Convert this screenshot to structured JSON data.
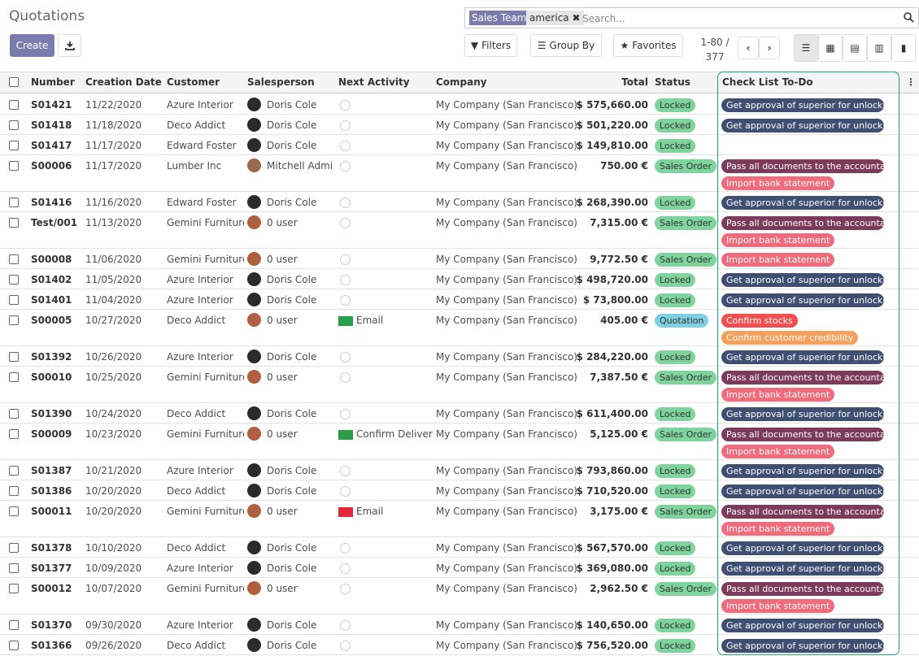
{
  "header": {
    "title": "Quotations",
    "create": "Create",
    "facet_name": "Sales Team",
    "facet_value": "america",
    "search_placeholder": "Search...",
    "filters": "Filters",
    "group_by": "Group By",
    "favorites": "Favorites",
    "pager_range": "1-80 /",
    "pager_total": "377"
  },
  "table": {
    "columns": [
      "Number",
      "Creation Date",
      "Customer",
      "Salesperson",
      "Next Activity",
      "Company",
      "Total",
      "Status",
      "Check List To-Do"
    ],
    "rows": [
      {
        "number": "S01421",
        "date": "11/22/2020",
        "customer": "Azure Interior",
        "salesperson": "Doris Cole",
        "avatar": "#2b2b2b",
        "activity": null,
        "company": "My Company (San Francisco)",
        "total": "$ 575,660.00",
        "status": {
          "label": "Locked",
          "color": "#7fd39d"
        },
        "checklist": [
          {
            "label": "Get approval of superior for unlocki...",
            "color": "#3f4f72"
          }
        ]
      },
      {
        "number": "S01418",
        "date": "11/18/2020",
        "customer": "Deco Addict",
        "salesperson": "Doris Cole",
        "avatar": "#2b2b2b",
        "activity": null,
        "company": "My Company (San Francisco)",
        "total": "$ 501,220.00",
        "status": {
          "label": "Locked",
          "color": "#7fd39d"
        },
        "checklist": [
          {
            "label": "Get approval of superior for unlocki...",
            "color": "#3f4f72"
          }
        ]
      },
      {
        "number": "S01417",
        "date": "11/17/2020",
        "customer": "Edward Foster",
        "salesperson": "Doris Cole",
        "avatar": "#2b2b2b",
        "activity": null,
        "company": "My Company (San Francisco)",
        "total": "$ 149,810.00",
        "status": {
          "label": "Locked",
          "color": "#7fd39d"
        },
        "checklist": []
      },
      {
        "number": "S00006",
        "date": "11/17/2020",
        "customer": "Lumber Inc",
        "salesperson": "Mitchell Admin",
        "avatar": "#9a6a4c",
        "activity": null,
        "company": "My Company (San Francisco)",
        "total": "750.00 €",
        "status": {
          "label": "Sales Order",
          "color": "#7fd39d"
        },
        "checklist": [
          {
            "label": "Pass all documents to the accountant",
            "color": "#7d3b5c"
          },
          {
            "label": "Import bank statement",
            "color": "#f06b7b"
          }
        ]
      },
      {
        "number": "S01416",
        "date": "11/16/2020",
        "customer": "Edward Foster",
        "salesperson": "Doris Cole",
        "avatar": "#2b2b2b",
        "activity": null,
        "company": "My Company (San Francisco)",
        "total": "$ 268,390.00",
        "status": {
          "label": "Locked",
          "color": "#7fd39d"
        },
        "checklist": [
          {
            "label": "Get approval of superior for unlocki...",
            "color": "#3f4f72"
          }
        ]
      },
      {
        "number": "Test/001",
        "date": "11/13/2020",
        "customer": "Gemini Furniture",
        "salesperson": "0 user",
        "avatar": "#b0603e",
        "activity": null,
        "company": "My Company (San Francisco)",
        "total": "7,315.00 €",
        "status": {
          "label": "Sales Order",
          "color": "#7fd39d"
        },
        "checklist": [
          {
            "label": "Pass all documents to the accountant",
            "color": "#7d3b5c"
          },
          {
            "label": "Import bank statement",
            "color": "#f06b7b"
          }
        ]
      },
      {
        "number": "S00008",
        "date": "11/06/2020",
        "customer": "Gemini Furniture",
        "salesperson": "0 user",
        "avatar": "#b0603e",
        "activity": null,
        "company": "My Company (San Francisco)",
        "total": "9,772.50 €",
        "status": {
          "label": "Sales Order",
          "color": "#7fd39d"
        },
        "checklist": [
          {
            "label": "Import bank statement",
            "color": "#f06b7b"
          }
        ]
      },
      {
        "number": "S01402",
        "date": "11/05/2020",
        "customer": "Azure Interior",
        "salesperson": "Doris Cole",
        "avatar": "#2b2b2b",
        "activity": null,
        "company": "My Company (San Francisco)",
        "total": "$ 498,720.00",
        "status": {
          "label": "Locked",
          "color": "#7fd39d"
        },
        "checklist": [
          {
            "label": "Get approval of superior for unlocki...",
            "color": "#3f4f72"
          }
        ]
      },
      {
        "number": "S01401",
        "date": "11/04/2020",
        "customer": "Azure Interior",
        "salesperson": "Doris Cole",
        "avatar": "#2b2b2b",
        "activity": null,
        "company": "My Company (San Francisco)",
        "total": "$ 73,800.00",
        "status": {
          "label": "Locked",
          "color": "#7fd39d"
        },
        "checklist": [
          {
            "label": "Get approval of superior for unlocki...",
            "color": "#3f4f72"
          }
        ]
      },
      {
        "number": "S00005",
        "date": "10/27/2020",
        "customer": "Deco Addict",
        "salesperson": "0 user",
        "avatar": "#b0603e",
        "activity": {
          "label": "Email",
          "color": "#2a9d4a"
        },
        "company": "My Company (San Francisco)",
        "total": "405.00 €",
        "status": {
          "label": "Quotation",
          "color": "#7fd0e2"
        },
        "checklist": [
          {
            "label": "Confirm stocks",
            "color": "#f25050"
          },
          {
            "label": "Confirm customer credibility",
            "color": "#f5a05c"
          }
        ]
      },
      {
        "number": "S01392",
        "date": "10/26/2020",
        "customer": "Azure Interior",
        "salesperson": "Doris Cole",
        "avatar": "#2b2b2b",
        "activity": null,
        "company": "My Company (San Francisco)",
        "total": "$ 284,220.00",
        "status": {
          "label": "Locked",
          "color": "#7fd39d"
        },
        "checklist": [
          {
            "label": "Get approval of superior for unlocki...",
            "color": "#3f4f72"
          }
        ]
      },
      {
        "number": "S00010",
        "date": "10/25/2020",
        "customer": "Gemini Furniture",
        "salesperson": "0 user",
        "avatar": "#b0603e",
        "activity": null,
        "company": "My Company (San Francisco)",
        "total": "7,387.50 €",
        "status": {
          "label": "Sales Order",
          "color": "#7fd39d"
        },
        "checklist": [
          {
            "label": "Pass all documents to the accountant",
            "color": "#7d3b5c"
          },
          {
            "label": "Import bank statement",
            "color": "#f06b7b"
          }
        ]
      },
      {
        "number": "S01390",
        "date": "10/24/2020",
        "customer": "Deco Addict",
        "salesperson": "Doris Cole",
        "avatar": "#2b2b2b",
        "activity": null,
        "company": "My Company (San Francisco)",
        "total": "$ 611,400.00",
        "status": {
          "label": "Locked",
          "color": "#7fd39d"
        },
        "checklist": [
          {
            "label": "Get approval of superior for unlocki...",
            "color": "#3f4f72"
          }
        ]
      },
      {
        "number": "S00009",
        "date": "10/23/2020",
        "customer": "Gemini Furniture",
        "salesperson": "0 user",
        "avatar": "#b0603e",
        "activity": {
          "label": "Confirm Delivery",
          "color": "#2a9d4a"
        },
        "company": "My Company (San Francisco)",
        "total": "5,125.00 €",
        "status": {
          "label": "Sales Order",
          "color": "#7fd39d"
        },
        "checklist": [
          {
            "label": "Pass all documents to the accountant",
            "color": "#7d3b5c"
          },
          {
            "label": "Import bank statement",
            "color": "#f06b7b"
          }
        ]
      },
      {
        "number": "S01387",
        "date": "10/21/2020",
        "customer": "Azure Interior",
        "salesperson": "Doris Cole",
        "avatar": "#2b2b2b",
        "activity": null,
        "company": "My Company (San Francisco)",
        "total": "$ 793,860.00",
        "status": {
          "label": "Locked",
          "color": "#7fd39d"
        },
        "checklist": [
          {
            "label": "Get approval of superior for unlocki...",
            "color": "#3f4f72"
          }
        ]
      },
      {
        "number": "S01386",
        "date": "10/20/2020",
        "customer": "Deco Addict",
        "salesperson": "Doris Cole",
        "avatar": "#2b2b2b",
        "activity": null,
        "company": "My Company (San Francisco)",
        "total": "$ 710,520.00",
        "status": {
          "label": "Locked",
          "color": "#7fd39d"
        },
        "checklist": [
          {
            "label": "Get approval of superior for unlocki...",
            "color": "#3f4f72"
          }
        ]
      },
      {
        "number": "S00011",
        "date": "10/20/2020",
        "customer": "Gemini Furniture",
        "salesperson": "0 user",
        "avatar": "#b0603e",
        "activity": {
          "label": "Email",
          "color": "#e0283f"
        },
        "company": "My Company (San Francisco)",
        "total": "3,175.00 €",
        "status": {
          "label": "Sales Order",
          "color": "#7fd39d"
        },
        "checklist": [
          {
            "label": "Pass all documents to the accountant",
            "color": "#7d3b5c"
          },
          {
            "label": "Import bank statement",
            "color": "#f06b7b"
          }
        ]
      },
      {
        "number": "S01378",
        "date": "10/10/2020",
        "customer": "Deco Addict",
        "salesperson": "Doris Cole",
        "avatar": "#2b2b2b",
        "activity": null,
        "company": "My Company (San Francisco)",
        "total": "$ 567,570.00",
        "status": {
          "label": "Locked",
          "color": "#7fd39d"
        },
        "checklist": [
          {
            "label": "Get approval of superior for unlocki...",
            "color": "#3f4f72"
          }
        ]
      },
      {
        "number": "S01377",
        "date": "10/09/2020",
        "customer": "Azure Interior",
        "salesperson": "Doris Cole",
        "avatar": "#2b2b2b",
        "activity": null,
        "company": "My Company (San Francisco)",
        "total": "$ 369,080.00",
        "status": {
          "label": "Locked",
          "color": "#7fd39d"
        },
        "checklist": [
          {
            "label": "Get approval of superior for unlocki...",
            "color": "#3f4f72"
          }
        ]
      },
      {
        "number": "S00012",
        "date": "10/07/2020",
        "customer": "Gemini Furniture",
        "salesperson": "0 user",
        "avatar": "#b0603e",
        "activity": null,
        "company": "My Company (San Francisco)",
        "total": "2,962.50 €",
        "status": {
          "label": "Sales Order",
          "color": "#7fd39d"
        },
        "checklist": [
          {
            "label": "Pass all documents to the accountant",
            "color": "#7d3b5c"
          },
          {
            "label": "Import bank statement",
            "color": "#f06b7b"
          }
        ]
      },
      {
        "number": "S01370",
        "date": "09/30/2020",
        "customer": "Azure Interior",
        "salesperson": "Doris Cole",
        "avatar": "#2b2b2b",
        "activity": null,
        "company": "My Company (San Francisco)",
        "total": "$ 140,650.00",
        "status": {
          "label": "Locked",
          "color": "#7fd39d"
        },
        "checklist": [
          {
            "label": "Get approval of superior for unlocki...",
            "color": "#3f4f72"
          }
        ]
      },
      {
        "number": "S01366",
        "date": "09/26/2020",
        "customer": "Deco Addict",
        "salesperson": "Doris Cole",
        "avatar": "#2b2b2b",
        "activity": null,
        "company": "My Company (San Francisco)",
        "total": "$ 756,520.00",
        "status": {
          "label": "Locked",
          "color": "#7fd39d"
        },
        "checklist": [
          {
            "label": "Get approval of superior for unlocki...",
            "color": "#3f4f72"
          }
        ]
      }
    ]
  }
}
